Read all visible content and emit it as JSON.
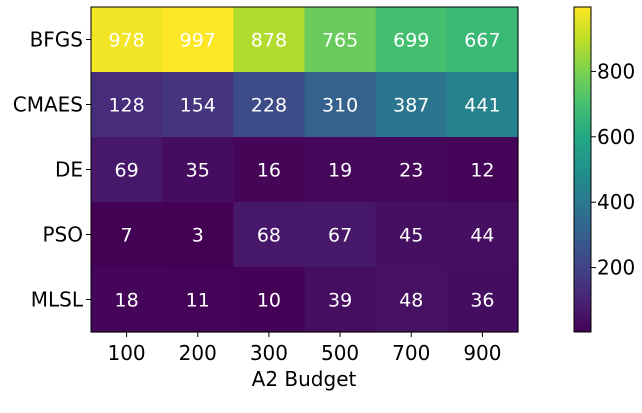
{
  "chart_data": {
    "type": "heatmap",
    "xlabel": "A2 Budget",
    "ylabel": "",
    "x_categories": [
      "100",
      "200",
      "300",
      "500",
      "700",
      "900"
    ],
    "y_categories": [
      "BFGS",
      "CMAES",
      "DE",
      "PSO",
      "MLSL"
    ],
    "values": [
      [
        978,
        997,
        878,
        765,
        699,
        667
      ],
      [
        128,
        154,
        228,
        310,
        387,
        441
      ],
      [
        69,
        35,
        16,
        19,
        23,
        12
      ],
      [
        7,
        3,
        68,
        67,
        45,
        44
      ],
      [
        18,
        11,
        10,
        39,
        48,
        36
      ]
    ],
    "colormap": "viridis",
    "color_range": [
      3,
      997
    ],
    "colorbar_ticks": [
      200,
      400,
      600,
      800
    ],
    "annotation_color": "#ffffff"
  }
}
